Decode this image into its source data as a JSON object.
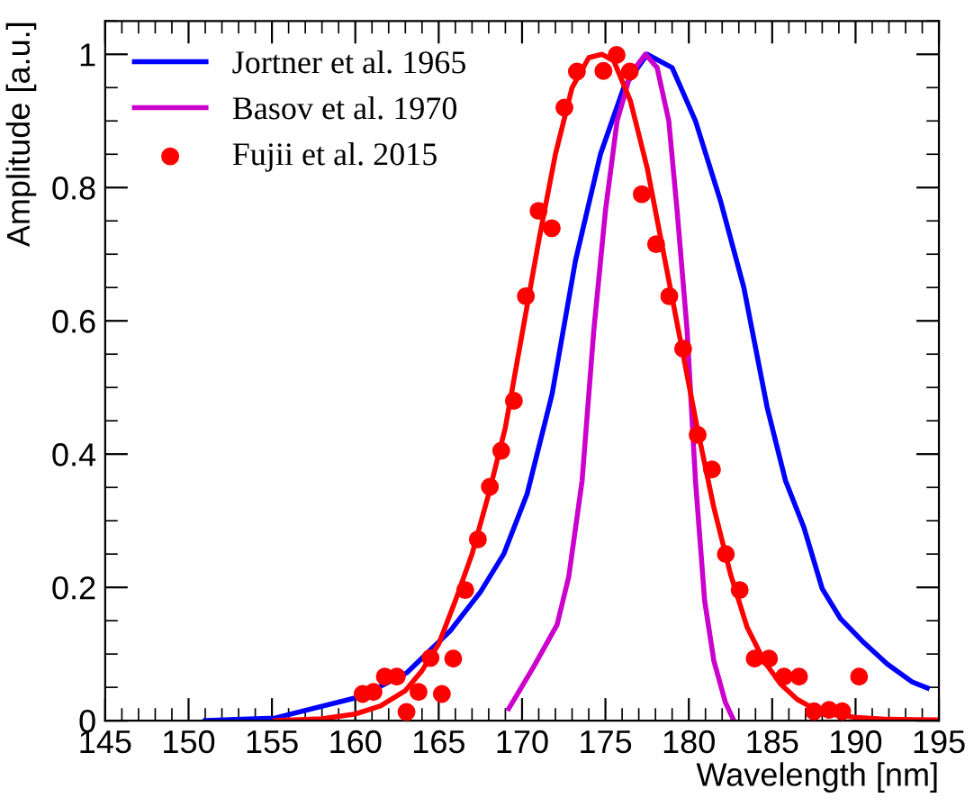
{
  "chart_data": {
    "type": "line",
    "xlabel": "Wavelength [nm]",
    "ylabel": "Amplitude [a.u.]",
    "xlim": [
      145,
      195
    ],
    "xticks": [
      145,
      150,
      155,
      160,
      165,
      170,
      175,
      180,
      185,
      190,
      195
    ],
    "ylim": [
      0,
      1.05
    ],
    "yticks": [
      0,
      0.2,
      0.4,
      0.6,
      0.8,
      1
    ],
    "grid": false,
    "legend": "top left",
    "line_style": "solid",
    "series": [
      {
        "name": "Jortner et al. 1965",
        "color": "#0000ff",
        "x": [
          151.0,
          155.2,
          160.3,
          163.1,
          165.7,
          167.5,
          168.9,
          170.3,
          171.8,
          173.2,
          174.7,
          176.1,
          177.5,
          179.0,
          180.4,
          181.9,
          183.3,
          184.7,
          185.8,
          186.9,
          188.0,
          189.1,
          190.5,
          191.9,
          193.4,
          194.3
        ],
        "values": [
          0.0,
          0.004,
          0.036,
          0.072,
          0.135,
          0.193,
          0.25,
          0.34,
          0.49,
          0.69,
          0.85,
          0.95,
          1.0,
          0.98,
          0.9,
          0.78,
          0.65,
          0.47,
          0.36,
          0.29,
          0.198,
          0.153,
          0.117,
          0.085,
          0.058,
          0.049
        ]
      },
      {
        "name": "Basov et al. 1970",
        "color": "#cc00cc",
        "x": [
          169.2,
          170.7,
          172.1,
          172.8,
          173.6,
          174.3,
          175.0,
          175.7,
          176.5,
          177.4,
          178.1,
          178.8,
          179.3,
          179.9,
          180.4,
          180.95,
          181.5,
          182.2,
          182.7
        ],
        "values": [
          0.018,
          0.081,
          0.144,
          0.216,
          0.36,
          0.585,
          0.765,
          0.9,
          0.97,
          1.0,
          0.98,
          0.9,
          0.765,
          0.585,
          0.36,
          0.18,
          0.09,
          0.027,
          0.0
        ]
      },
      {
        "name": "Fujii et al. 2015",
        "type": "scatter",
        "marker": "circle",
        "color": "#ff0000",
        "x": [
          160.44,
          161.09,
          161.77,
          162.49,
          163.07,
          163.79,
          164.51,
          165.19,
          165.87,
          166.59,
          167.35,
          168.07,
          168.75,
          169.51,
          170.23,
          170.99,
          171.78,
          172.54,
          173.29,
          174.88,
          175.67,
          176.46,
          177.18,
          178.04,
          178.83,
          179.66,
          180.53,
          181.39,
          182.22,
          183.05,
          183.95,
          184.81,
          185.71,
          186.61,
          187.51,
          188.41,
          189.2,
          190.21
        ],
        "values": [
          0.04,
          0.043,
          0.066,
          0.066,
          0.013,
          0.043,
          0.094,
          0.04,
          0.093,
          0.196,
          0.272,
          0.351,
          0.405,
          0.48,
          0.637,
          0.765,
          0.739,
          0.92,
          0.974,
          0.975,
          0.999,
          0.974,
          0.79,
          0.715,
          0.637,
          0.558,
          0.429,
          0.377,
          0.25,
          0.196,
          0.093,
          0.093,
          0.066,
          0.066,
          0.014,
          0.016,
          0.014,
          0.066
        ]
      },
      {
        "color": "#ff0000",
        "x": [
          155.2,
          158,
          160,
          161.5,
          163,
          164,
          165,
          166,
          167,
          168,
          169,
          170,
          171,
          172,
          173,
          174,
          174.8,
          175.5,
          176.5,
          177.5,
          178.5,
          179.5,
          180.5,
          181.5,
          182.5,
          183.5,
          184.5,
          185.5,
          186.5,
          187.5,
          188.5,
          190,
          192,
          195
        ],
        "values": [
          0.0,
          0.003,
          0.01,
          0.022,
          0.045,
          0.075,
          0.115,
          0.18,
          0.25,
          0.34,
          0.44,
          0.58,
          0.72,
          0.85,
          0.95,
          0.995,
          1.0,
          0.99,
          0.93,
          0.83,
          0.7,
          0.57,
          0.44,
          0.32,
          0.22,
          0.14,
          0.09,
          0.055,
          0.032,
          0.018,
          0.01,
          0.005,
          0.002,
          0.001
        ]
      }
    ]
  }
}
